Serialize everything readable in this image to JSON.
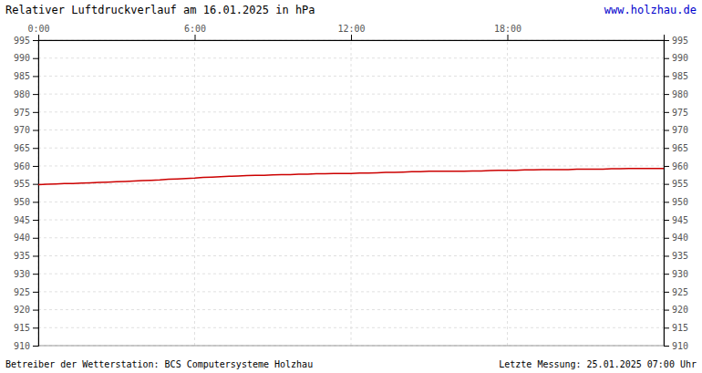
{
  "chart_data": {
    "type": "line",
    "title": "Relativer Luftdruckverlauf am 16.01.2025 in hPa",
    "annotations": [
      "www.holzhau.de",
      "Betreiber der Wetterstation: BCS Computersysteme Holzhau",
      "Letzte Messung: 25.01.2025 07:00 Uhr"
    ],
    "x": [
      0,
      20,
      40,
      60,
      80,
      100,
      120,
      140,
      160,
      180,
      200,
      220,
      240,
      260,
      280,
      300,
      320,
      340,
      360,
      380,
      400,
      420,
      440,
      460,
      480,
      500,
      520,
      540,
      560,
      580,
      600,
      620,
      640,
      660,
      680,
      700,
      720,
      740,
      760,
      780,
      800,
      820,
      840,
      860,
      880,
      900,
      920,
      940,
      960,
      980,
      1000,
      1020,
      1040,
      1060,
      1080,
      1100,
      1120,
      1140,
      1160,
      1180,
      1200,
      1220,
      1240,
      1260,
      1280,
      1300,
      1320,
      1340,
      1360,
      1380,
      1400,
      1420,
      1440
    ],
    "values": [
      954.8,
      954.9,
      955.0,
      955.1,
      955.1,
      955.2,
      955.3,
      955.4,
      955.5,
      955.6,
      955.7,
      955.8,
      955.9,
      956.0,
      956.1,
      956.3,
      956.4,
      956.5,
      956.6,
      956.8,
      956.9,
      957.0,
      957.1,
      957.2,
      957.3,
      957.4,
      957.4,
      957.5,
      957.6,
      957.6,
      957.7,
      957.7,
      957.8,
      957.8,
      957.9,
      957.9,
      957.9,
      958.0,
      958.0,
      958.1,
      958.2,
      958.2,
      958.3,
      958.4,
      958.4,
      958.5,
      958.5,
      958.5,
      958.5,
      958.5,
      958.6,
      958.6,
      958.7,
      958.8,
      958.8,
      958.8,
      958.9,
      958.9,
      959.0,
      959.0,
      959.0,
      959.0,
      959.1,
      959.1,
      959.1,
      959.1,
      959.2,
      959.2,
      959.3,
      959.3,
      959.3,
      959.3,
      959.3
    ],
    "color": "#cc0000",
    "xlim": [
      0,
      1440
    ],
    "xticks": [
      {
        "value": 0,
        "label": "0:00"
      },
      {
        "value": 360,
        "label": "6:00"
      },
      {
        "value": 720,
        "label": "12:00"
      },
      {
        "value": 1080,
        "label": "18:00"
      }
    ],
    "ylim": [
      910,
      995
    ],
    "yticks": [
      910,
      915,
      920,
      925,
      930,
      935,
      940,
      945,
      950,
      955,
      960,
      965,
      970,
      975,
      980,
      985,
      990,
      995
    ],
    "y2lim": [
      910,
      995
    ],
    "y2ticks": [
      910,
      915,
      920,
      925,
      930,
      935,
      940,
      945,
      950,
      955,
      960,
      965,
      970,
      975,
      980,
      985,
      990,
      995
    ],
    "grid": true
  }
}
